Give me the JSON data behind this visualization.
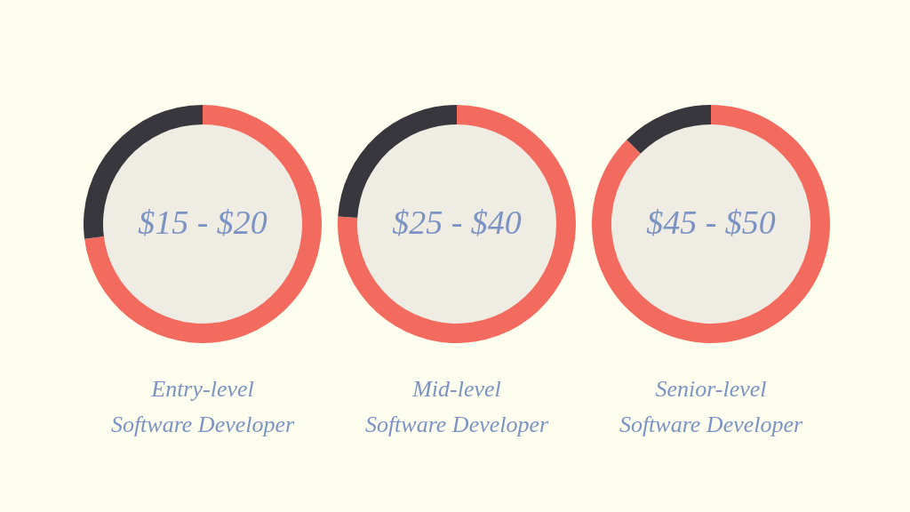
{
  "chart_data": [
    {
      "type": "donut",
      "title": "Entry-level\nSoftware Developer",
      "annotations": [
        "$15 - $20"
      ],
      "categories": [
        null,
        null
      ],
      "values": [
        73,
        27
      ],
      "colors": [
        "#f26b5e",
        "#38373d"
      ]
    },
    {
      "type": "donut",
      "title": "Mid-level\nSoftware Developer",
      "annotations": [
        "$25 - $40"
      ],
      "categories": [
        null,
        null
      ],
      "values": [
        76,
        24
      ],
      "colors": [
        "#f26b5e",
        "#38373d"
      ]
    },
    {
      "type": "donut",
      "title": "Senior-level\nSoftware Developer",
      "annotations": [
        "$45 - $50"
      ],
      "categories": [
        null,
        null
      ],
      "values": [
        87.5,
        12.5
      ],
      "colors": [
        "#f26b5e",
        "#38373d"
      ]
    }
  ]
}
